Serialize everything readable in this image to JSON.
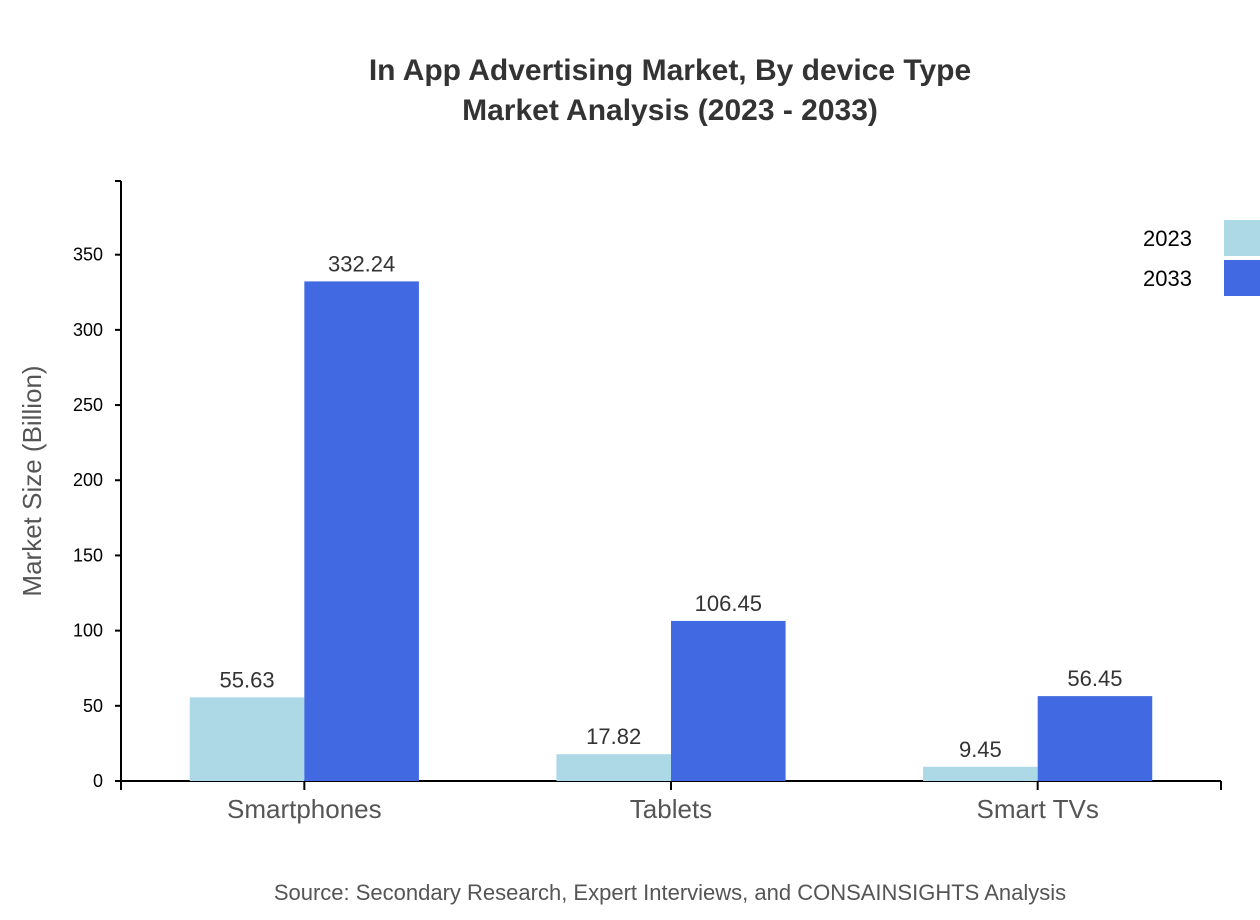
{
  "chart_data": {
    "type": "bar",
    "title": [
      "In App Advertising Market, By device Type",
      "Market Analysis (2023 - 2033)"
    ],
    "xlabel": "",
    "ylabel": "Market Size (Billion)",
    "categories": [
      "Smartphones",
      "Tablets",
      "Smart TVs"
    ],
    "series": [
      {
        "name": "2023",
        "color": "#add8e6",
        "values": [
          55.63,
          17.82,
          9.45
        ],
        "labels": [
          "55.63",
          "17.82",
          "9.45"
        ]
      },
      {
        "name": "2033",
        "color": "#4169e1",
        "values": [
          332.24,
          106.45,
          56.45
        ],
        "labels": [
          "332.24",
          "106.45",
          "56.45"
        ]
      },
      {
        "_": null
      }
    ],
    "ylim": [
      0,
      399
    ],
    "yticks": [
      0,
      50,
      100,
      150,
      200,
      250,
      300,
      350
    ],
    "grid": false,
    "legend": "top-right",
    "source": "Source: Secondary Research, Expert Interviews, and CONSAINSIGHTS Analysis"
  }
}
